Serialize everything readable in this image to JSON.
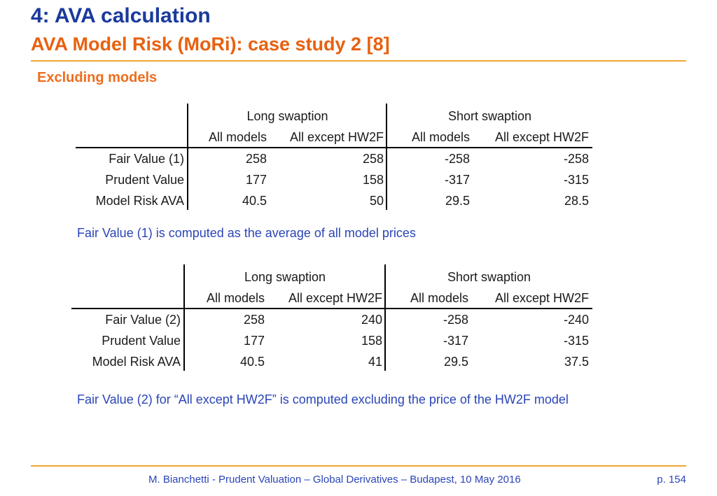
{
  "header": {
    "title": "4: AVA calculation",
    "subtitle": "AVA Model Risk (MoRi): case study 2 [8]"
  },
  "section_title": "Excluding models",
  "colors": {
    "title": "#1a3a9c",
    "subtitle": "#e8610f",
    "rule": "#f2a531",
    "note": "#2a45b8"
  },
  "table1": {
    "group_headers": [
      "Long swaption",
      "Short swaption"
    ],
    "sub_headers": [
      "All models",
      "All except HW2F",
      "All models",
      "All except HW2F"
    ],
    "rows": [
      {
        "label": "Fair Value (1)",
        "values": [
          "258",
          "258",
          "-258",
          "-258"
        ]
      },
      {
        "label": "Prudent Value",
        "values": [
          "177",
          "158",
          "-317",
          "-315"
        ]
      },
      {
        "label": "Model Risk AVA",
        "values": [
          "40.5",
          "50",
          "29.5",
          "28.5"
        ]
      }
    ]
  },
  "note1": "Fair Value (1) is computed as the average of all model prices",
  "table2": {
    "group_headers": [
      "Long swaption",
      "Short swaption"
    ],
    "sub_headers": [
      "All models",
      "All except HW2F",
      "All models",
      "All except HW2F"
    ],
    "rows": [
      {
        "label": "Fair Value (2)",
        "values": [
          "258",
          "240",
          "-258",
          "-240"
        ]
      },
      {
        "label": "Prudent Value",
        "values": [
          "177",
          "158",
          "-317",
          "-315"
        ]
      },
      {
        "label": "Model Risk AVA",
        "values": [
          "40.5",
          "41",
          "29.5",
          "37.5"
        ]
      }
    ]
  },
  "note2": "Fair Value (2) for “All except HW2F” is computed excluding the price of the HW2F model",
  "footer": {
    "text": "M. Bianchetti - Prudent Valuation – Global Derivatives – Budapest, 10 May 2016",
    "page": "p. 154"
  }
}
